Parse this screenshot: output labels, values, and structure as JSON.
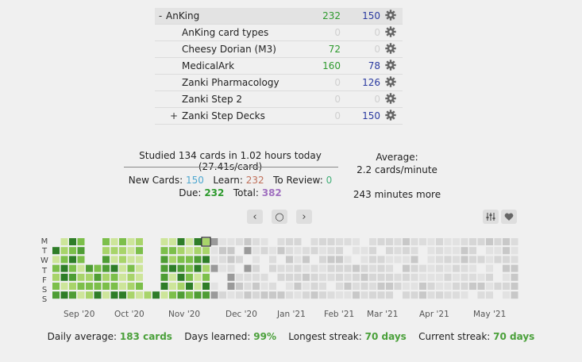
{
  "decks": [
    {
      "name": "AnKing",
      "collapse": "-",
      "new": "232",
      "due": "150",
      "current": true,
      "indent": 0
    },
    {
      "name": "AnKing card types",
      "collapse": "",
      "new": "0",
      "due": "0",
      "current": false,
      "indent": 1
    },
    {
      "name": "Cheesy Dorian (M3)",
      "collapse": "",
      "new": "72",
      "due": "0",
      "current": false,
      "indent": 1
    },
    {
      "name": "MedicalArk",
      "collapse": "",
      "new": "160",
      "due": "78",
      "current": false,
      "indent": 1
    },
    {
      "name": "Zanki Pharmacology",
      "collapse": "",
      "new": "0",
      "due": "126",
      "current": false,
      "indent": 1
    },
    {
      "name": "Zanki Step 2",
      "collapse": "",
      "new": "0",
      "due": "0",
      "current": false,
      "indent": 1
    },
    {
      "name": "Zanki Step Decks",
      "collapse": "+",
      "new": "0",
      "due": "150",
      "current": false,
      "indent": 1
    }
  ],
  "studied": "Studied 134 cards in 1.02 hours today (27.41s/card)",
  "average": {
    "label": "Average:",
    "value": "2.2 cards/minute"
  },
  "more": "243 minutes more",
  "counts": {
    "new_label": "New Cards:",
    "new": "150",
    "learn_label": "Learn:",
    "learn": "232",
    "review_label": "To Review:",
    "review": "0",
    "due_label": "Due:",
    "due": "232",
    "total_label": "Total:",
    "total": "382"
  },
  "nav": {
    "prev": "‹",
    "today": "○",
    "next": "›"
  },
  "icons": {
    "gear": "gear-icon",
    "options": "sliders-icon",
    "heart": "heart-icon"
  },
  "heatmap": {
    "days": [
      "M",
      "T",
      "W",
      "T",
      "F",
      "S",
      "S"
    ],
    "months": [
      "Sep '20",
      "Oct '20",
      "Nov '20",
      "Dec '20",
      "Jan '21",
      "Feb '21",
      "Mar '21",
      "Apr '21",
      "May '21"
    ]
  },
  "footer": {
    "daily_label": "Daily average:",
    "daily": "183 cards",
    "days_label": "Days learned:",
    "days": "99%",
    "longest_label": "Longest streak:",
    "longest": "70 days",
    "current_label": "Current streak:",
    "current": "70 days"
  },
  "colors": {
    "green_text": "#2e9a2e",
    "blue_text": "#2a3aa0",
    "accent": "#4aa03a"
  }
}
